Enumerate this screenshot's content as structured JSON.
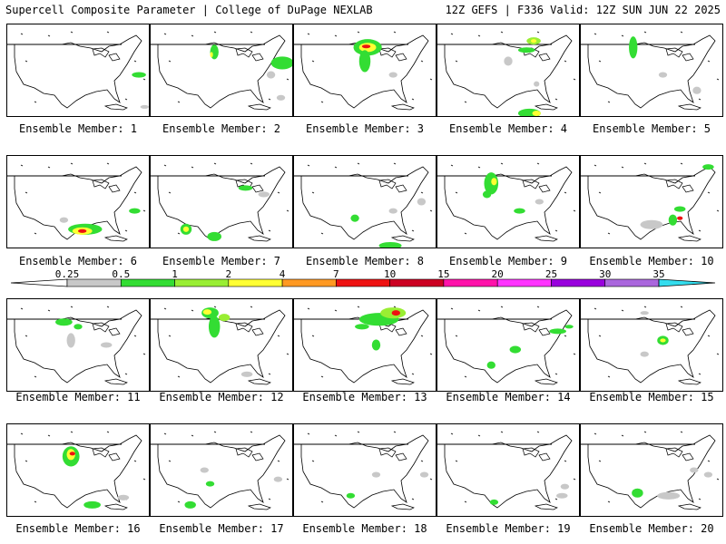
{
  "header": {
    "left": "Supercell Composite Parameter | College of DuPage NEXLAB",
    "right": "12Z GEFS | F336 Valid: 12Z SUN JUN 22 2025"
  },
  "member_label_prefix": "Ensemble Member: ",
  "members": [
    1,
    2,
    3,
    4,
    5,
    6,
    7,
    8,
    9,
    10,
    11,
    12,
    13,
    14,
    15,
    16,
    17,
    18,
    19,
    20
  ],
  "legend": {
    "ticks": [
      "0.25",
      "0.5",
      "1",
      "2",
      "4",
      "7",
      "10",
      "15",
      "20",
      "25",
      "30",
      "35"
    ],
    "colors": [
      "#c8c8c8",
      "#33dd33",
      "#99ee33",
      "#ffff33",
      "#ff9922",
      "#ee1111",
      "#cc0022",
      "#ff11aa",
      "#ff33ff",
      "#9900dd",
      "#aa66dd",
      "#33ddee"
    ]
  },
  "blobs": {
    "1": [
      [
        93,
        55,
        5,
        3,
        1
      ],
      [
        97,
        90,
        3,
        2,
        0
      ]
    ],
    "2": [
      [
        45,
        30,
        3,
        8,
        1
      ],
      [
        43,
        33,
        1,
        3,
        3
      ],
      [
        93,
        42,
        8,
        7,
        1
      ],
      [
        85,
        55,
        3,
        4,
        0
      ],
      [
        92,
        80,
        3,
        3,
        0
      ]
    ],
    "3": [
      [
        52,
        25,
        10,
        9,
        1
      ],
      [
        52,
        25,
        6,
        5,
        3
      ],
      [
        51,
        24,
        3,
        2,
        5
      ],
      [
        50,
        40,
        4,
        12,
        1
      ],
      [
        70,
        55,
        3,
        3,
        0
      ]
    ],
    "4": [
      [
        68,
        18,
        5,
        4,
        2
      ],
      [
        68,
        18,
        2,
        2,
        3
      ],
      [
        63,
        28,
        6,
        3,
        1
      ],
      [
        50,
        40,
        3,
        5,
        0
      ],
      [
        70,
        65,
        2,
        3,
        0
      ],
      [
        65,
        97,
        8,
        5,
        1
      ],
      [
        70,
        97,
        3,
        3,
        3
      ]
    ],
    "5": [
      [
        37,
        25,
        3,
        12,
        1
      ],
      [
        58,
        55,
        3,
        3,
        0
      ],
      [
        82,
        72,
        3,
        4,
        0
      ]
    ],
    "6": [
      [
        55,
        80,
        12,
        6,
        1
      ],
      [
        53,
        82,
        7,
        4,
        3
      ],
      [
        53,
        82,
        3,
        2,
        5
      ],
      [
        90,
        60,
        4,
        3,
        1
      ],
      [
        40,
        70,
        3,
        3,
        0
      ]
    ],
    "7": [
      [
        25,
        80,
        4,
        6,
        1
      ],
      [
        25,
        80,
        2,
        3,
        3
      ],
      [
        45,
        88,
        5,
        5,
        1
      ],
      [
        67,
        35,
        5,
        3,
        1
      ],
      [
        80,
        42,
        4,
        3,
        0
      ]
    ],
    "8": [
      [
        43,
        68,
        3,
        4,
        1
      ],
      [
        70,
        60,
        3,
        3,
        0
      ],
      [
        68,
        98,
        8,
        4,
        1
      ],
      [
        90,
        50,
        3,
        4,
        0
      ]
    ],
    "9": [
      [
        38,
        30,
        5,
        12,
        1
      ],
      [
        40,
        28,
        2,
        4,
        3
      ],
      [
        35,
        42,
        3,
        4,
        1
      ],
      [
        58,
        60,
        4,
        3,
        1
      ],
      [
        72,
        50,
        3,
        3,
        0
      ]
    ],
    "10": [
      [
        70,
        58,
        4,
        3,
        1
      ],
      [
        50,
        75,
        8,
        5,
        0
      ],
      [
        65,
        70,
        3,
        6,
        1
      ],
      [
        70,
        68,
        2,
        2,
        5
      ],
      [
        90,
        12,
        4,
        3,
        1
      ]
    ],
    "11": [
      [
        40,
        25,
        6,
        4,
        1
      ],
      [
        50,
        30,
        3,
        3,
        1
      ],
      [
        45,
        45,
        3,
        8,
        0
      ],
      [
        70,
        50,
        4,
        3,
        0
      ]
    ],
    "12": [
      [
        42,
        15,
        6,
        6,
        1
      ],
      [
        40,
        14,
        3,
        3,
        3
      ],
      [
        52,
        20,
        4,
        4,
        2
      ],
      [
        45,
        30,
        4,
        12,
        1
      ],
      [
        68,
        82,
        4,
        3,
        0
      ]
    ],
    "13": [
      [
        60,
        22,
        14,
        7,
        1
      ],
      [
        70,
        15,
        9,
        6,
        2
      ],
      [
        72,
        15,
        3,
        3,
        5
      ],
      [
        48,
        30,
        5,
        3,
        1
      ],
      [
        58,
        50,
        3,
        6,
        1
      ]
    ],
    "14": [
      [
        55,
        55,
        4,
        4,
        1
      ],
      [
        85,
        35,
        6,
        3,
        1
      ],
      [
        93,
        30,
        3,
        2,
        1
      ],
      [
        38,
        72,
        3,
        4,
        1
      ]
    ],
    "15": [
      [
        58,
        45,
        4,
        5,
        1
      ],
      [
        58,
        45,
        2,
        2,
        3
      ],
      [
        45,
        60,
        3,
        3,
        0
      ],
      [
        45,
        15,
        3,
        2,
        0
      ]
    ],
    "16": [
      [
        45,
        35,
        6,
        11,
        1
      ],
      [
        45,
        33,
        3,
        6,
        3
      ],
      [
        46,
        32,
        2,
        2,
        5
      ],
      [
        60,
        88,
        6,
        4,
        1
      ],
      [
        82,
        80,
        4,
        3,
        0
      ]
    ],
    "17": [
      [
        28,
        88,
        4,
        4,
        1
      ],
      [
        38,
        50,
        3,
        3,
        0
      ],
      [
        42,
        65,
        3,
        3,
        1
      ],
      [
        90,
        60,
        3,
        3,
        0
      ]
    ],
    "18": [
      [
        40,
        78,
        3,
        3,
        1
      ],
      [
        58,
        55,
        3,
        3,
        0
      ],
      [
        92,
        55,
        3,
        3,
        0
      ]
    ],
    "19": [
      [
        40,
        85,
        3,
        3,
        1
      ],
      [
        88,
        78,
        4,
        3,
        0
      ],
      [
        90,
        68,
        3,
        3,
        0
      ]
    ],
    "20": [
      [
        40,
        75,
        4,
        5,
        1
      ],
      [
        62,
        78,
        8,
        4,
        0
      ],
      [
        80,
        50,
        3,
        3,
        0
      ],
      [
        90,
        55,
        3,
        3,
        0
      ]
    ]
  }
}
